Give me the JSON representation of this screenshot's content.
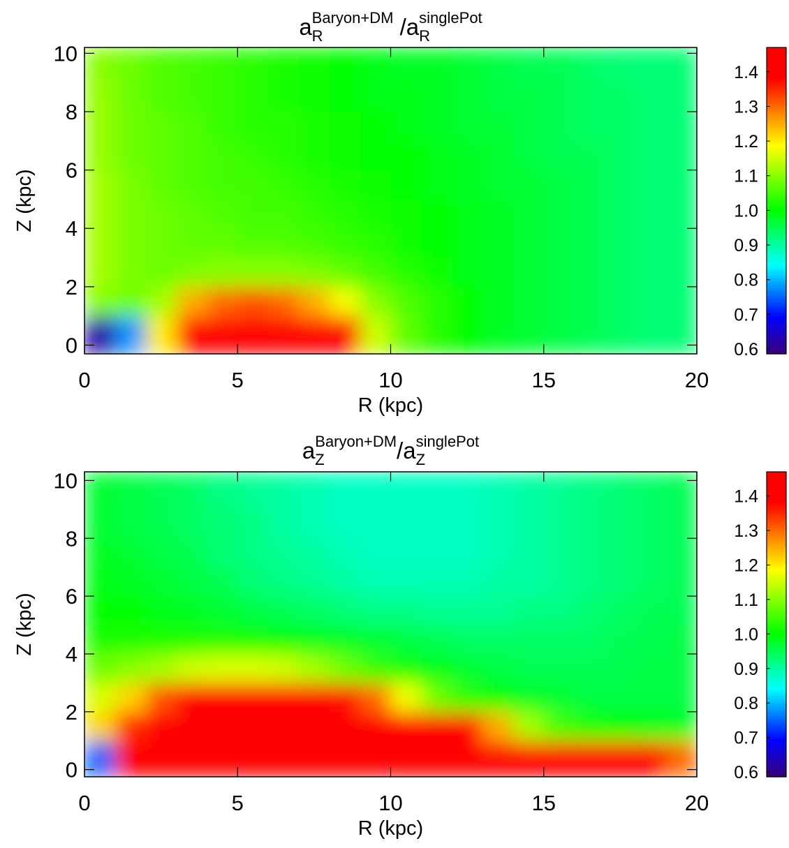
{
  "chart_data": [
    {
      "type": "heatmap",
      "title": [
        {
          "text": "a"
        },
        {
          "text": "R",
          "script": "sub"
        },
        {
          "text": "Baryon+DM",
          "script": "sup"
        },
        {
          "text": " /a"
        },
        {
          "text": "R",
          "script": "sub"
        },
        {
          "text": "singlePot",
          "script": "sup"
        }
      ],
      "xlabel": "R (kpc)",
      "ylabel": "Z (kpc)",
      "xlim": [
        0,
        20
      ],
      "ylim": [
        -0.3,
        10.2
      ],
      "xticks": [
        0,
        5,
        10,
        15,
        20
      ],
      "yticks": [
        0,
        2,
        4,
        6,
        8,
        10
      ],
      "zlim": [
        0.586,
        1.47
      ],
      "zticks": [
        0.6,
        0.7,
        0.8,
        0.9,
        {
          "value": 1,
          "label": "1.0"
        },
        1.1,
        1.2,
        1.3,
        1.4
      ],
      "x": [
        0.5,
        1.5,
        2.5,
        3.5,
        4.5,
        5.5,
        6.5,
        7.5,
        8.5,
        9.5,
        10.5,
        11.5,
        12.5,
        13.5,
        14.5,
        15.5,
        16.5,
        17.5,
        18.5,
        19.5
      ],
      "y": [
        0.5,
        1.5,
        2.5,
        3.5,
        4.5,
        5.5,
        6.5,
        7.5,
        8.5,
        9.5
      ],
      "z": [
        [
          0.62,
          0.78,
          1.2,
          1.4,
          1.4,
          1.4,
          1.4,
          1.4,
          1.38,
          1.15,
          1.07,
          1.03,
          1.0,
          0.98,
          0.97,
          0.96,
          0.95,
          0.94,
          0.93,
          0.93
        ],
        [
          1.1,
          1.08,
          1.12,
          1.25,
          1.3,
          1.32,
          1.3,
          1.25,
          1.18,
          1.1,
          1.06,
          1.03,
          1.0,
          0.98,
          0.97,
          0.96,
          0.95,
          0.94,
          0.93,
          0.93
        ],
        [
          1.12,
          1.09,
          1.08,
          1.09,
          1.1,
          1.1,
          1.1,
          1.09,
          1.07,
          1.05,
          1.03,
          1.01,
          0.99,
          0.98,
          0.97,
          0.96,
          0.95,
          0.94,
          0.93,
          0.93
        ],
        [
          1.12,
          1.09,
          1.08,
          1.07,
          1.07,
          1.06,
          1.06,
          1.05,
          1.04,
          1.03,
          1.01,
          1.0,
          0.99,
          0.98,
          0.97,
          0.96,
          0.95,
          0.94,
          0.93,
          0.93
        ],
        [
          1.12,
          1.09,
          1.08,
          1.07,
          1.06,
          1.05,
          1.05,
          1.04,
          1.03,
          1.02,
          1.01,
          1.0,
          0.99,
          0.98,
          0.97,
          0.96,
          0.95,
          0.94,
          0.93,
          0.93
        ],
        [
          1.12,
          1.09,
          1.07,
          1.06,
          1.05,
          1.05,
          1.04,
          1.03,
          1.02,
          1.01,
          1.0,
          0.99,
          0.98,
          0.97,
          0.97,
          0.96,
          0.95,
          0.94,
          0.93,
          0.93
        ],
        [
          1.11,
          1.08,
          1.07,
          1.06,
          1.05,
          1.04,
          1.03,
          1.02,
          1.01,
          1.0,
          1.0,
          0.99,
          0.98,
          0.97,
          0.96,
          0.95,
          0.95,
          0.94,
          0.93,
          0.93
        ],
        [
          1.11,
          1.08,
          1.07,
          1.06,
          1.04,
          1.03,
          1.03,
          1.02,
          1.01,
          1.0,
          0.99,
          0.98,
          0.97,
          0.97,
          0.96,
          0.95,
          0.94,
          0.94,
          0.93,
          0.93
        ],
        [
          1.11,
          1.08,
          1.06,
          1.05,
          1.04,
          1.03,
          1.02,
          1.01,
          1.0,
          0.99,
          0.99,
          0.98,
          0.97,
          0.96,
          0.96,
          0.95,
          0.94,
          0.94,
          0.93,
          0.93
        ],
        [
          1.1,
          1.08,
          1.06,
          1.05,
          1.04,
          1.03,
          1.02,
          1.01,
          1.0,
          0.99,
          0.98,
          0.98,
          0.97,
          0.96,
          0.95,
          0.95,
          0.94,
          0.93,
          0.93,
          0.93
        ]
      ]
    },
    {
      "type": "heatmap",
      "title": [
        {
          "text": "a"
        },
        {
          "text": "Z",
          "script": "sub"
        },
        {
          "text": "Baryon+DM",
          "script": "sup"
        },
        {
          "text": "/a"
        },
        {
          "text": "Z",
          "script": "sub"
        },
        {
          "text": "singlePot",
          "script": "sup"
        }
      ],
      "xlabel": "R (kpc)",
      "ylabel": "Z (kpc)",
      "xlim": [
        0,
        20
      ],
      "ylim": [
        -0.25,
        10.3
      ],
      "xticks": [
        0,
        5,
        10,
        15,
        20
      ],
      "yticks": [
        0,
        2,
        4,
        6,
        8,
        10
      ],
      "zlim": [
        0.586,
        1.47
      ],
      "zticks": [
        0.6,
        0.7,
        0.8,
        0.9,
        {
          "value": 1,
          "label": "1.0"
        },
        1.1,
        1.2,
        1.3,
        1.4
      ],
      "x": [
        0.5,
        1.5,
        2.5,
        3.5,
        4.5,
        5.5,
        6.5,
        7.5,
        8.5,
        9.5,
        10.5,
        11.5,
        12.5,
        13.5,
        14.5,
        15.5,
        16.5,
        17.5,
        18.5,
        19.5
      ],
      "y": [
        0.5,
        1.5,
        2.5,
        3.5,
        4.5,
        5.5,
        6.5,
        7.5,
        8.5,
        9.5
      ],
      "z": [
        [
          0.75,
          1.4,
          1.4,
          1.4,
          1.4,
          1.4,
          1.4,
          1.4,
          1.4,
          1.4,
          1.4,
          1.4,
          1.4,
          1.4,
          1.4,
          1.4,
          1.4,
          1.4,
          1.38,
          1.3
        ],
        [
          1.22,
          1.35,
          1.4,
          1.4,
          1.4,
          1.4,
          1.4,
          1.4,
          1.4,
          1.4,
          1.4,
          1.4,
          1.38,
          1.25,
          1.12,
          1.05,
          1.02,
          1.0,
          0.99,
          0.98
        ],
        [
          1.16,
          1.22,
          1.32,
          1.4,
          1.4,
          1.4,
          1.4,
          1.4,
          1.37,
          1.3,
          1.18,
          1.08,
          1.03,
          1.0,
          0.98,
          0.97,
          0.96,
          0.96,
          0.96,
          0.96
        ],
        [
          1.08,
          1.1,
          1.12,
          1.15,
          1.16,
          1.16,
          1.15,
          1.12,
          1.08,
          1.04,
          1.01,
          0.99,
          0.97,
          0.96,
          0.95,
          0.95,
          0.95,
          0.95,
          0.96,
          0.96
        ],
        [
          1.02,
          1.02,
          1.02,
          1.02,
          1.02,
          1.01,
          1.0,
          0.99,
          0.98,
          0.97,
          0.96,
          0.95,
          0.94,
          0.94,
          0.94,
          0.94,
          0.94,
          0.95,
          0.95,
          0.96
        ],
        [
          1.0,
          1.0,
          0.99,
          0.98,
          0.97,
          0.96,
          0.95,
          0.94,
          0.93,
          0.92,
          0.92,
          0.91,
          0.91,
          0.91,
          0.92,
          0.92,
          0.93,
          0.94,
          0.95,
          0.95
        ],
        [
          0.99,
          0.98,
          0.97,
          0.96,
          0.95,
          0.93,
          0.92,
          0.91,
          0.9,
          0.89,
          0.89,
          0.89,
          0.89,
          0.9,
          0.9,
          0.91,
          0.92,
          0.93,
          0.94,
          0.95
        ],
        [
          0.98,
          0.97,
          0.96,
          0.95,
          0.93,
          0.92,
          0.91,
          0.9,
          0.89,
          0.88,
          0.88,
          0.88,
          0.88,
          0.89,
          0.9,
          0.91,
          0.92,
          0.93,
          0.94,
          0.95
        ],
        [
          0.97,
          0.96,
          0.95,
          0.94,
          0.93,
          0.92,
          0.9,
          0.89,
          0.88,
          0.88,
          0.88,
          0.88,
          0.88,
          0.89,
          0.9,
          0.91,
          0.92,
          0.93,
          0.94,
          0.95
        ],
        [
          0.97,
          0.96,
          0.95,
          0.94,
          0.92,
          0.91,
          0.9,
          0.89,
          0.88,
          0.88,
          0.88,
          0.88,
          0.88,
          0.89,
          0.9,
          0.91,
          0.92,
          0.93,
          0.94,
          0.95
        ]
      ]
    }
  ]
}
